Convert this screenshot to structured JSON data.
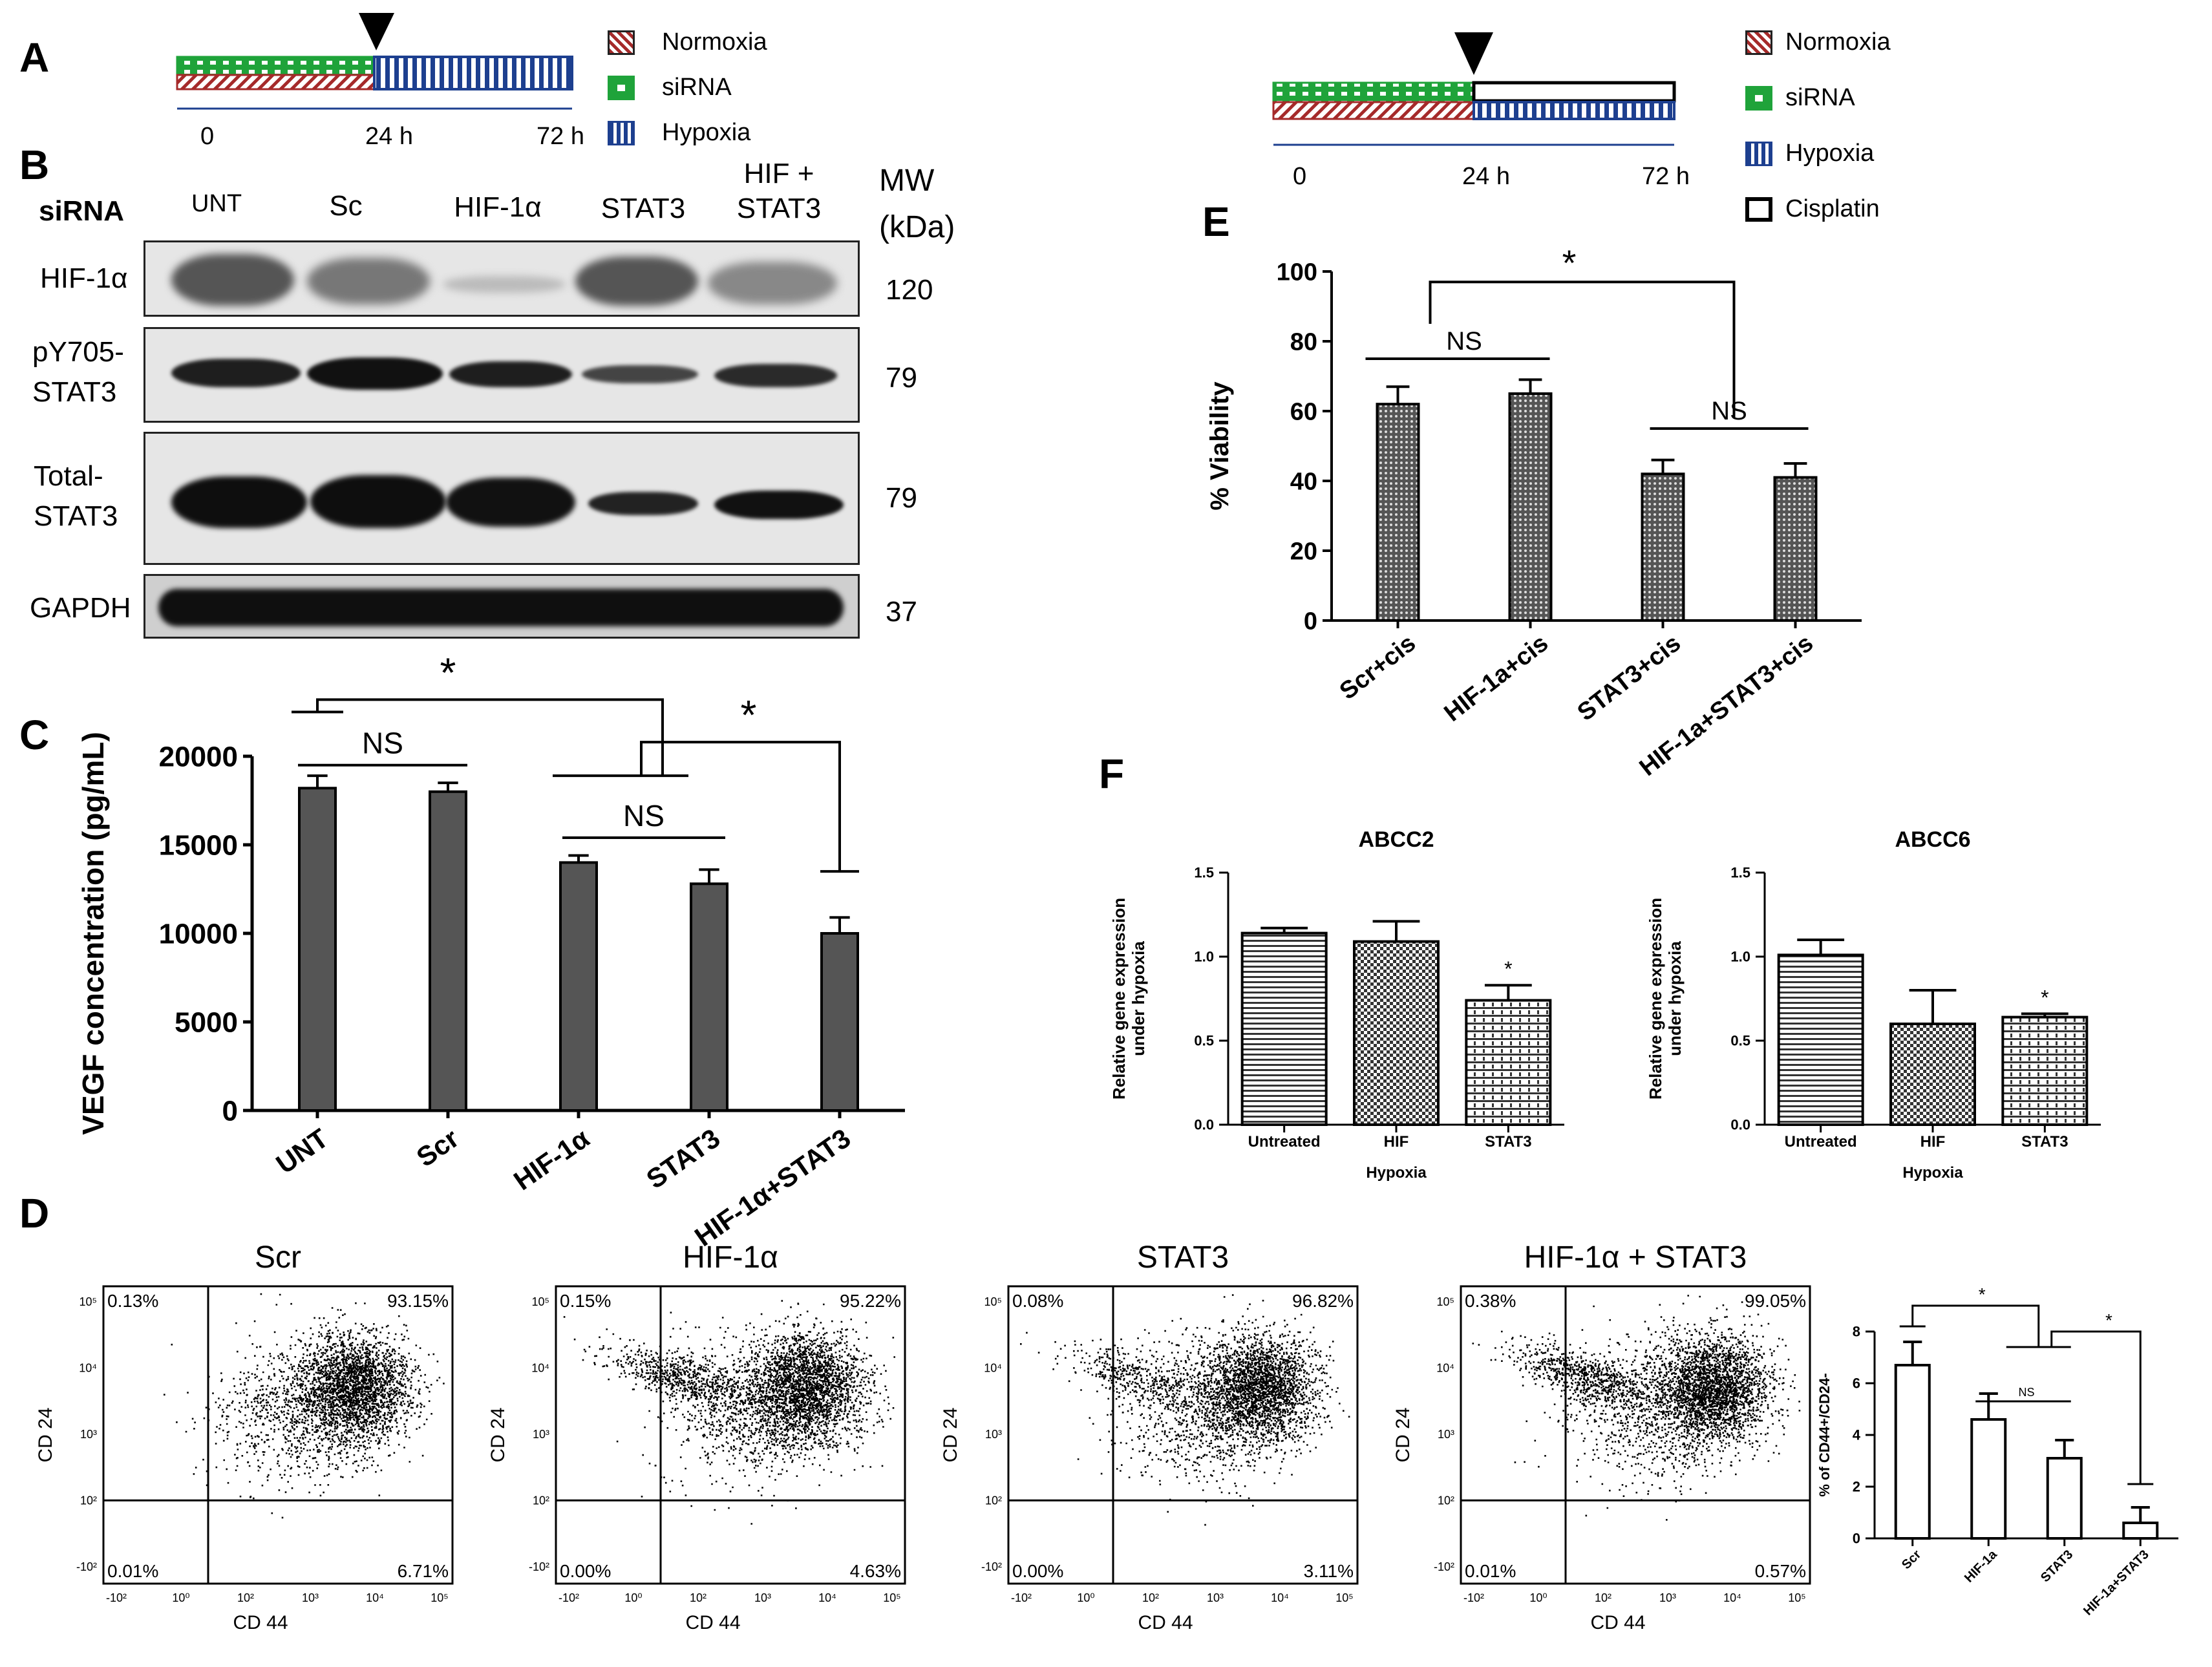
{
  "panel_labels": {
    "A": "A",
    "B": "B",
    "C": "C",
    "D": "D",
    "E": "E",
    "F": "F"
  },
  "timeline_a": {
    "ticks": [
      "0",
      "24 h",
      "72 h"
    ],
    "legend": [
      "Normoxia",
      "siRNA",
      "Hypoxia"
    ]
  },
  "timeline_e": {
    "ticks": [
      "0",
      "24 h",
      "72 h"
    ],
    "legend": [
      "Normoxia",
      "siRNA",
      "Hypoxia",
      "Cisplatin"
    ]
  },
  "colors": {
    "normoxia": "#a52a2a",
    "sirna": "#1fa33a",
    "hypoxia": "#1d3f8f",
    "cisplatin": "#000000",
    "bar_dark": "#555555"
  },
  "western_blot": {
    "row_header": "siRNA",
    "lanes": [
      "UNT",
      "Sc",
      "HIF-1α",
      "STAT3",
      "HIF +\nSTAT3"
    ],
    "mw_header": "MW\n(kDa)",
    "rows": [
      {
        "label": "HIF-1α",
        "mw": "120"
      },
      {
        "label": "pY705-\nSTAT3",
        "mw": "79"
      },
      {
        "label": "Total-\nSTAT3",
        "mw": "79"
      },
      {
        "label": "GAPDH",
        "mw": "37"
      }
    ]
  },
  "chart_data": [
    {
      "panel": "C",
      "type": "bar",
      "categories": [
        "UNT",
        "Scr",
        "HIF-1α",
        "STAT3",
        "HIF-1α+STAT3"
      ],
      "values": [
        18200,
        18000,
        14000,
        12800,
        10000
      ],
      "errors": [
        700,
        500,
        400,
        800,
        900
      ],
      "ylabel": "VEGF concentration (pg/mL)",
      "yticks": [
        "0",
        "5000",
        "10000",
        "15000",
        "20000"
      ],
      "ylim": [
        0,
        20000
      ],
      "annotations": [
        "NS",
        "*",
        "NS",
        "*"
      ]
    },
    {
      "panel": "E",
      "type": "bar",
      "categories": [
        "Scr+cis",
        "HIF-1a+cis",
        "STAT3+cis",
        "HIF-1a+STAT3+cis"
      ],
      "values": [
        62,
        65,
        42,
        41
      ],
      "errors": [
        5,
        4,
        4,
        4
      ],
      "ylabel": "% Viability",
      "yticks": [
        "0",
        "20",
        "40",
        "60",
        "80",
        "100"
      ],
      "ylim": [
        0,
        100
      ],
      "annotations": [
        "NS",
        "*",
        "NS"
      ]
    },
    {
      "panel": "F",
      "type": "bar",
      "title": "ABCC2",
      "categories": [
        "Untreated",
        "HIF",
        "STAT3"
      ],
      "values": [
        1.14,
        1.09,
        0.74
      ],
      "errors": [
        0.03,
        0.12,
        0.09
      ],
      "ylabel": "Relative gene expression\nunder hypoxia",
      "xlabel": "Hypoxia",
      "yticks": [
        "0.0",
        "0.5",
        "1.0",
        "1.5"
      ],
      "ylim": [
        0,
        1.5
      ],
      "annotations": [
        "*"
      ]
    },
    {
      "panel": "F",
      "type": "bar",
      "title": "ABCC6",
      "categories": [
        "Untreated",
        "HIF",
        "STAT3"
      ],
      "values": [
        1.01,
        0.6,
        0.64
      ],
      "errors": [
        0.09,
        0.2,
        0.02
      ],
      "ylabel": "Relative gene expression\nunder hypoxia",
      "xlabel": "Hypoxia",
      "yticks": [
        "0.0",
        "0.5",
        "1.0",
        "1.5"
      ],
      "ylim": [
        0,
        1.5
      ],
      "annotations": [
        "*"
      ]
    },
    {
      "panel": "D",
      "type": "bar",
      "categories": [
        "Scr",
        "HIF-1a",
        "STAT3",
        "HIF-1a+STAT3"
      ],
      "values": [
        6.7,
        4.6,
        3.1,
        0.6
      ],
      "errors": [
        0.9,
        1.0,
        0.7,
        0.6
      ],
      "ylabel": "% of CD44+/CD24-",
      "yticks": [
        "0",
        "2",
        "4",
        "6",
        "8"
      ],
      "ylim": [
        0,
        8
      ],
      "annotations": [
        "*",
        "NS",
        "*"
      ]
    }
  ],
  "flow_cytometry": {
    "xlabel": "CD 44",
    "ylabel": "CD 24",
    "plots": [
      {
        "title": "Scr",
        "ul": "0.13%",
        "ur": "93.15%",
        "ll": "0.01%",
        "lr": "6.71%"
      },
      {
        "title": "HIF-1α",
        "ul": "0.15%",
        "ur": "95.22%",
        "ll": "0.00%",
        "lr": "4.63%"
      },
      {
        "title": "STAT3",
        "ul": "0.08%",
        "ur": "96.82%",
        "ll": "0.00%",
        "lr": "3.11%"
      },
      {
        "title": "HIF-1α + STAT3",
        "ul": "0.38%",
        "ur": "99.05%",
        "ll": "0.01%",
        "lr": "0.57%"
      }
    ],
    "axis_ticks_y": [
      "10⁵",
      "10⁴",
      "10³",
      "10²",
      "-10²"
    ],
    "axis_ticks_x": [
      "-10²",
      "10⁰",
      "10²",
      "10³",
      "10⁴",
      "10⁵"
    ]
  }
}
